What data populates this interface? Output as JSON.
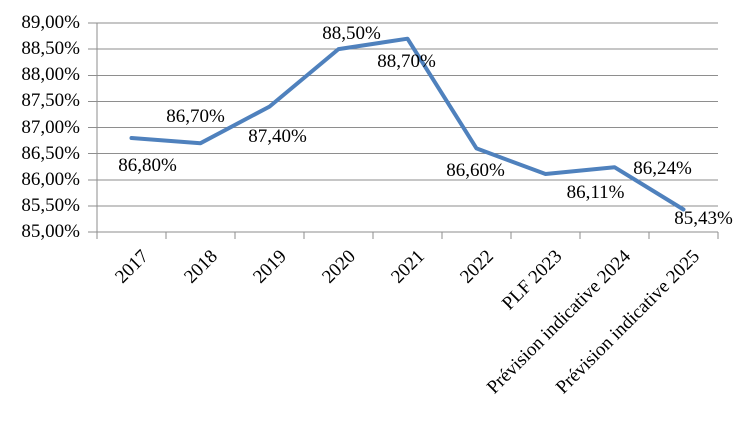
{
  "chart_data": {
    "type": "line",
    "categories": [
      "2017",
      "2018",
      "2019",
      "2020",
      "2021",
      "2022",
      "PLF 2023",
      "Prévision indicative 2024",
      "Prévision indicative 2025"
    ],
    "values": [
      86.8,
      86.7,
      87.4,
      88.5,
      88.7,
      86.6,
      86.11,
      86.24,
      85.43
    ],
    "data_labels": [
      "86,80%",
      "86,70%",
      "87,40%",
      "88,50%",
      "88,70%",
      "86,60%",
      "86,11%",
      "86,24%",
      "85,43%"
    ],
    "y_tick_labels_top_to_bottom": [
      "89,00%",
      "88,50%",
      "88,00%",
      "87,50%",
      "87,00%",
      "86,50%",
      "86,00%",
      "85,50%",
      "85,00%"
    ],
    "title": "",
    "xlabel": "",
    "ylabel": "",
    "ylim": [
      85.0,
      89.0
    ],
    "y_tick_step": 0.5,
    "grid": true,
    "legend": "none",
    "series_color": "#4F81BD",
    "gridline_color": "#8E8E8E",
    "axis_color": "#8E8E8E",
    "text_color": "#000000",
    "background": "#FFFFFF"
  }
}
